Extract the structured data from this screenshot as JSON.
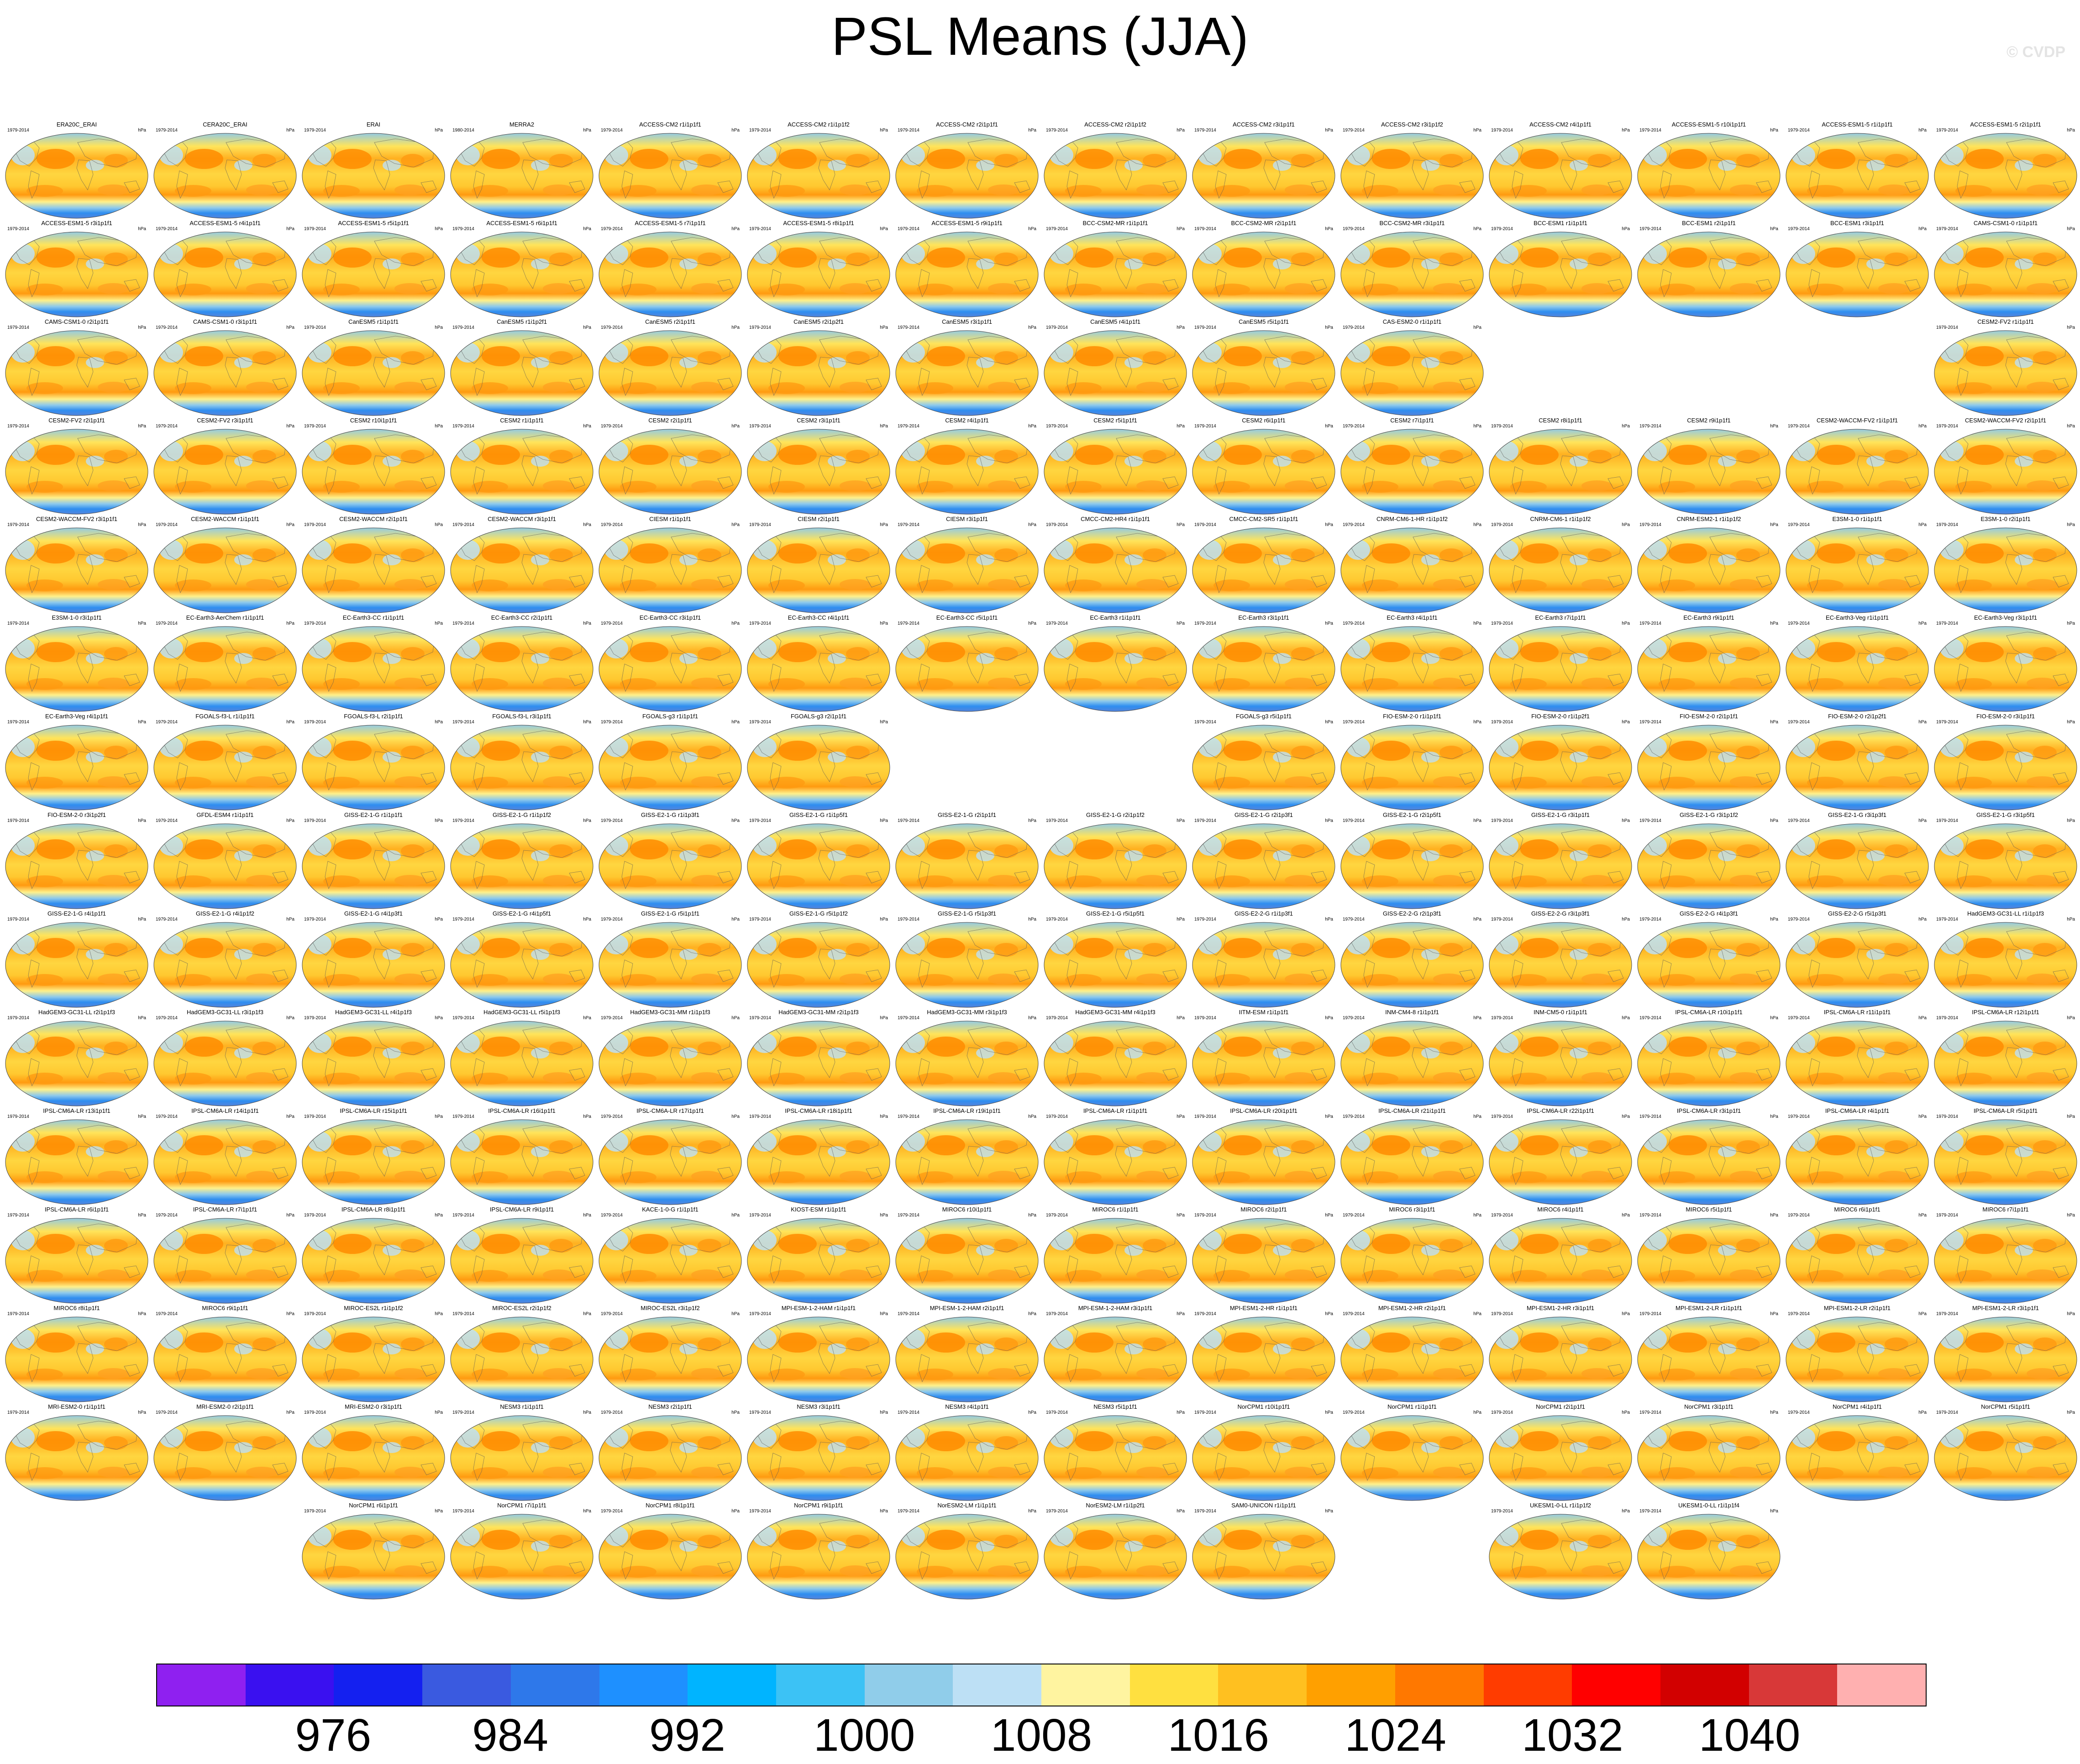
{
  "title": "PSL Means (JJA)",
  "watermark": "© CVDP",
  "chart_data": {
    "type": "heatmap",
    "title": "PSL Means (JJA)",
    "units": "hPa",
    "colorbar": {
      "ticks": [
        "976",
        "984",
        "992",
        "1000",
        "1008",
        "1016",
        "1024",
        "1032",
        "1040"
      ],
      "colors": [
        "#8f20f0",
        "#3a10f0",
        "#1420f0",
        "#3a5ae0",
        "#2e78ea",
        "#1e90ff",
        "#00b4ff",
        "#3cc2f5",
        "#90cdea",
        "#bde0f5",
        "#fff4a0",
        "#ffe040",
        "#ffc020",
        "#ffa000",
        "#ff7800",
        "#ff3c00",
        "#ff0000",
        "#d20000",
        "#d83838",
        "#ffb0b0"
      ]
    },
    "panel_period_default": "1979-2014",
    "rows": [
      [
        {
          "label": "ERA20C_ERAI"
        },
        {
          "label": "CERA20C_ERAI"
        },
        {
          "label": "ERAI"
        },
        {
          "label": "MERRA2",
          "years": "1980-2014"
        },
        {
          "label": "ACCESS-CM2 r1i1p1f1"
        },
        {
          "label": "ACCESS-CM2 r1i1p1f2"
        },
        {
          "label": "ACCESS-CM2 r2i1p1f1"
        },
        {
          "label": "ACCESS-CM2 r2i1p1f2"
        },
        {
          "label": "ACCESS-CM2 r3i1p1f1"
        },
        {
          "label": "ACCESS-CM2 r3i1p1f2"
        },
        {
          "label": "ACCESS-CM2 r4i1p1f1"
        },
        {
          "label": "ACCESS-ESM1-5 r10i1p1f1"
        },
        {
          "label": "ACCESS-ESM1-5 r1i1p1f1"
        },
        {
          "label": "ACCESS-ESM1-5 r2i1p1f1"
        }
      ],
      [
        {
          "label": "ACCESS-ESM1-5 r3i1p1f1"
        },
        {
          "label": "ACCESS-ESM1-5 r4i1p1f1"
        },
        {
          "label": "ACCESS-ESM1-5 r5i1p1f1"
        },
        {
          "label": "ACCESS-ESM1-5 r6i1p1f1"
        },
        {
          "label": "ACCESS-ESM1-5 r7i1p1f1"
        },
        {
          "label": "ACCESS-ESM1-5 r8i1p1f1"
        },
        {
          "label": "ACCESS-ESM1-5 r9i1p1f1"
        },
        {
          "label": "BCC-CSM2-MR r1i1p1f1"
        },
        {
          "label": "BCC-CSM2-MR r2i1p1f1"
        },
        {
          "label": "BCC-CSM2-MR r3i1p1f1"
        },
        {
          "label": "BCC-ESM1 r1i1p1f1"
        },
        {
          "label": "BCC-ESM1 r2i1p1f1"
        },
        {
          "label": "BCC-ESM1 r3i1p1f1"
        },
        {
          "label": "CAMS-CSM1-0 r1i1p1f1"
        }
      ],
      [
        {
          "label": "CAMS-CSM1-0 r2i1p1f1"
        },
        {
          "label": "CAMS-CSM1-0 r3i1p1f1"
        },
        {
          "label": "CanESM5 r1i1p1f1"
        },
        {
          "label": "CanESM5 r1i1p2f1"
        },
        {
          "label": "CanESM5 r2i1p1f1"
        },
        {
          "label": "CanESM5 r2i1p2f1"
        },
        {
          "label": "CanESM5 r3i1p1f1"
        },
        {
          "label": "CanESM5 r4i1p1f1"
        },
        {
          "label": "CanESM5 r5i1p1f1"
        },
        {
          "label": "CAS-ESM2-0 r1i1p1f1"
        },
        null,
        null,
        null,
        {
          "label": "CESM2-FV2 r1i1p1f1"
        }
      ],
      [
        {
          "label": "CESM2-FV2 r2i1p1f1"
        },
        {
          "label": "CESM2-FV2 r3i1p1f1"
        },
        {
          "label": "CESM2 r10i1p1f1"
        },
        {
          "label": "CESM2 r1i1p1f1"
        },
        {
          "label": "CESM2 r2i1p1f1"
        },
        {
          "label": "CESM2 r3i1p1f1"
        },
        {
          "label": "CESM2 r4i1p1f1"
        },
        {
          "label": "CESM2 r5i1p1f1"
        },
        {
          "label": "CESM2 r6i1p1f1"
        },
        {
          "label": "CESM2 r7i1p1f1"
        },
        {
          "label": "CESM2 r8i1p1f1"
        },
        {
          "label": "CESM2 r9i1p1f1"
        },
        {
          "label": "CESM2-WACCM-FV2 r1i1p1f1"
        },
        {
          "label": "CESM2-WACCM-FV2 r2i1p1f1"
        }
      ],
      [
        {
          "label": "CESM2-WACCM-FV2 r3i1p1f1"
        },
        {
          "label": "CESM2-WACCM r1i1p1f1"
        },
        {
          "label": "CESM2-WACCM r2i1p1f1"
        },
        {
          "label": "CESM2-WACCM r3i1p1f1"
        },
        {
          "label": "CIESM r1i1p1f1"
        },
        {
          "label": "CIESM r2i1p1f1"
        },
        {
          "label": "CIESM r3i1p1f1"
        },
        {
          "label": "CMCC-CM2-HR4 r1i1p1f1"
        },
        {
          "label": "CMCC-CM2-SR5 r1i1p1f1"
        },
        {
          "label": "CNRM-CM6-1-HR r1i1p1f2"
        },
        {
          "label": "CNRM-CM6-1 r1i1p1f2"
        },
        {
          "label": "CNRM-ESM2-1 r1i1p1f2"
        },
        {
          "label": "E3SM-1-0 r1i1p1f1"
        },
        {
          "label": "E3SM-1-0 r2i1p1f1"
        }
      ],
      [
        {
          "label": "E3SM-1-0 r3i1p1f1"
        },
        {
          "label": "EC-Earth3-AerChem r1i1p1f1"
        },
        {
          "label": "EC-Earth3-CC r1i1p1f1"
        },
        {
          "label": "EC-Earth3-CC r2i1p1f1"
        },
        {
          "label": "EC-Earth3-CC r3i1p1f1"
        },
        {
          "label": "EC-Earth3-CC r4i1p1f1"
        },
        {
          "label": "EC-Earth3-CC r5i1p1f1"
        },
        {
          "label": "EC-Earth3 r1i1p1f1"
        },
        {
          "label": "EC-Earth3 r3i1p1f1"
        },
        {
          "label": "EC-Earth3 r4i1p1f1"
        },
        {
          "label": "EC-Earth3 r7i1p1f1"
        },
        {
          "label": "EC-Earth3 r9i1p1f1"
        },
        {
          "label": "EC-Earth3-Veg r1i1p1f1"
        },
        {
          "label": "EC-Earth3-Veg r3i1p1f1"
        }
      ],
      [
        {
          "label": "EC-Earth3-Veg r4i1p1f1"
        },
        {
          "label": "FGOALS-f3-L r1i1p1f1"
        },
        {
          "label": "FGOALS-f3-L r2i1p1f1"
        },
        {
          "label": "FGOALS-f3-L r3i1p1f1"
        },
        {
          "label": "FGOALS-g3 r1i1p1f1"
        },
        {
          "label": "FGOALS-g3 r2i1p1f1"
        },
        null,
        null,
        {
          "label": "FGOALS-g3 r5i1p1f1"
        },
        {
          "label": "FIO-ESM-2-0 r1i1p1f1"
        },
        {
          "label": "FIO-ESM-2-0 r1i1p2f1"
        },
        {
          "label": "FIO-ESM-2-0 r2i1p1f1"
        },
        {
          "label": "FIO-ESM-2-0 r2i1p2f1"
        },
        {
          "label": "FIO-ESM-2-0 r3i1p1f1"
        }
      ],
      [
        {
          "label": "FIO-ESM-2-0 r3i1p2f1"
        },
        {
          "label": "GFDL-ESM4 r1i1p1f1"
        },
        {
          "label": "GISS-E2-1-G r1i1p1f1"
        },
        {
          "label": "GISS-E2-1-G r1i1p1f2"
        },
        {
          "label": "GISS-E2-1-G r1i1p3f1"
        },
        {
          "label": "GISS-E2-1-G r1i1p5f1"
        },
        {
          "label": "GISS-E2-1-G r2i1p1f1"
        },
        {
          "label": "GISS-E2-1-G r2i1p1f2"
        },
        {
          "label": "GISS-E2-1-G r2i1p3f1"
        },
        {
          "label": "GISS-E2-1-G r2i1p5f1"
        },
        {
          "label": "GISS-E2-1-G r3i1p1f1"
        },
        {
          "label": "GISS-E2-1-G r3i1p1f2"
        },
        {
          "label": "GISS-E2-1-G r3i1p3f1"
        },
        {
          "label": "GISS-E2-1-G r3i1p5f1"
        }
      ],
      [
        {
          "label": "GISS-E2-1-G r4i1p1f1"
        },
        {
          "label": "GISS-E2-1-G r4i1p1f2"
        },
        {
          "label": "GISS-E2-1-G r4i1p3f1"
        },
        {
          "label": "GISS-E2-1-G r4i1p5f1"
        },
        {
          "label": "GISS-E2-1-G r5i1p1f1"
        },
        {
          "label": "GISS-E2-1-G r5i1p1f2"
        },
        {
          "label": "GISS-E2-1-G r5i1p3f1"
        },
        {
          "label": "GISS-E2-1-G r5i1p5f1"
        },
        {
          "label": "GISS-E2-2-G r1i1p3f1"
        },
        {
          "label": "GISS-E2-2-G r2i1p3f1"
        },
        {
          "label": "GISS-E2-2-G r3i1p3f1"
        },
        {
          "label": "GISS-E2-2-G r4i1p3f1"
        },
        {
          "label": "GISS-E2-2-G r5i1p3f1"
        },
        {
          "label": "HadGEM3-GC31-LL r1i1p1f3"
        }
      ],
      [
        {
          "label": "HadGEM3-GC31-LL r2i1p1f3"
        },
        {
          "label": "HadGEM3-GC31-LL r3i1p1f3"
        },
        {
          "label": "HadGEM3-GC31-LL r4i1p1f3"
        },
        {
          "label": "HadGEM3-GC31-LL r5i1p1f3"
        },
        {
          "label": "HadGEM3-GC31-MM r1i1p1f3"
        },
        {
          "label": "HadGEM3-GC31-MM r2i1p1f3"
        },
        {
          "label": "HadGEM3-GC31-MM r3i1p1f3"
        },
        {
          "label": "HadGEM3-GC31-MM r4i1p1f3"
        },
        {
          "label": "IITM-ESM r1i1p1f1"
        },
        {
          "label": "INM-CM4-8 r1i1p1f1"
        },
        {
          "label": "INM-CM5-0 r1i1p1f1"
        },
        {
          "label": "IPSL-CM6A-LR r10i1p1f1"
        },
        {
          "label": "IPSL-CM6A-LR r11i1p1f1"
        },
        {
          "label": "IPSL-CM6A-LR r12i1p1f1"
        }
      ],
      [
        {
          "label": "IPSL-CM6A-LR r13i1p1f1"
        },
        {
          "label": "IPSL-CM6A-LR r14i1p1f1"
        },
        {
          "label": "IPSL-CM6A-LR r15i1p1f1"
        },
        {
          "label": "IPSL-CM6A-LR r16i1p1f1"
        },
        {
          "label": "IPSL-CM6A-LR r17i1p1f1"
        },
        {
          "label": "IPSL-CM6A-LR r18i1p1f1"
        },
        {
          "label": "IPSL-CM6A-LR r19i1p1f1"
        },
        {
          "label": "IPSL-CM6A-LR r1i1p1f1"
        },
        {
          "label": "IPSL-CM6A-LR r20i1p1f1"
        },
        {
          "label": "IPSL-CM6A-LR r21i1p1f1"
        },
        {
          "label": "IPSL-CM6A-LR r22i1p1f1"
        },
        {
          "label": "IPSL-CM6A-LR r3i1p1f1"
        },
        {
          "label": "IPSL-CM6A-LR r4i1p1f1"
        },
        {
          "label": "IPSL-CM6A-LR r5i1p1f1"
        }
      ],
      [
        {
          "label": "IPSL-CM6A-LR r6i1p1f1"
        },
        {
          "label": "IPSL-CM6A-LR r7i1p1f1"
        },
        {
          "label": "IPSL-CM6A-LR r8i1p1f1"
        },
        {
          "label": "IPSL-CM6A-LR r9i1p1f1"
        },
        {
          "label": "KACE-1-0-G r1i1p1f1"
        },
        {
          "label": "KIOST-ESM r1i1p1f1"
        },
        {
          "label": "MIROC6 r10i1p1f1"
        },
        {
          "label": "MIROC6 r1i1p1f1"
        },
        {
          "label": "MIROC6 r2i1p1f1"
        },
        {
          "label": "MIROC6 r3i1p1f1"
        },
        {
          "label": "MIROC6 r4i1p1f1"
        },
        {
          "label": "MIROC6 r5i1p1f1"
        },
        {
          "label": "MIROC6 r6i1p1f1"
        },
        {
          "label": "MIROC6 r7i1p1f1"
        }
      ],
      [
        {
          "label": "MIROC6 r8i1p1f1"
        },
        {
          "label": "MIROC6 r9i1p1f1"
        },
        {
          "label": "MIROC-ES2L r1i1p1f2"
        },
        {
          "label": "MIROC-ES2L r2i1p1f2"
        },
        {
          "label": "MIROC-ES2L r3i1p1f2"
        },
        {
          "label": "MPI-ESM-1-2-HAM r1i1p1f1"
        },
        {
          "label": "MPI-ESM-1-2-HAM r2i1p1f1"
        },
        {
          "label": "MPI-ESM-1-2-HAM r3i1p1f1"
        },
        {
          "label": "MPI-ESM1-2-HR r1i1p1f1"
        },
        {
          "label": "MPI-ESM1-2-HR r2i1p1f1"
        },
        {
          "label": "MPI-ESM1-2-HR r3i1p1f1"
        },
        {
          "label": "MPI-ESM1-2-LR r1i1p1f1"
        },
        {
          "label": "MPI-ESM1-2-LR r2i1p1f1"
        },
        {
          "label": "MPI-ESM1-2-LR r3i1p1f1"
        }
      ],
      [
        {
          "label": "MRI-ESM2-0 r1i1p1f1"
        },
        {
          "label": "MRI-ESM2-0 r2i1p1f1"
        },
        {
          "label": "MRI-ESM2-0 r3i1p1f1"
        },
        {
          "label": "NESM3 r1i1p1f1"
        },
        {
          "label": "NESM3 r2i1p1f1"
        },
        {
          "label": "NESM3 r3i1p1f1"
        },
        {
          "label": "NESM3 r4i1p1f1"
        },
        {
          "label": "NESM3 r5i1p1f1"
        },
        {
          "label": "NorCPM1 r10i1p1f1"
        },
        {
          "label": "NorCPM1 r1i1p1f1"
        },
        {
          "label": "NorCPM1 r2i1p1f1"
        },
        {
          "label": "NorCPM1 r3i1p1f1"
        },
        {
          "label": "NorCPM1 r4i1p1f1"
        },
        {
          "label": "NorCPM1 r5i1p1f1"
        }
      ],
      [
        null,
        null,
        {
          "label": "NorCPM1 r6i1p1f1"
        },
        {
          "label": "NorCPM1 r7i1p1f1"
        },
        {
          "label": "NorCPM1 r8i1p1f1"
        },
        {
          "label": "NorCPM1 r9i1p1f1"
        },
        {
          "label": "NorESM2-LM r1i1p1f1"
        },
        {
          "label": "NorESM2-LM r1i1p2f1"
        },
        {
          "label": "SAM0-UNICON r1i1p1f1"
        },
        null,
        {
          "label": "UKESM1-0-LL r1i1p1f2"
        },
        {
          "label": "UKESM1-0-LL r1i1p1f4"
        },
        null,
        null
      ]
    ]
  }
}
